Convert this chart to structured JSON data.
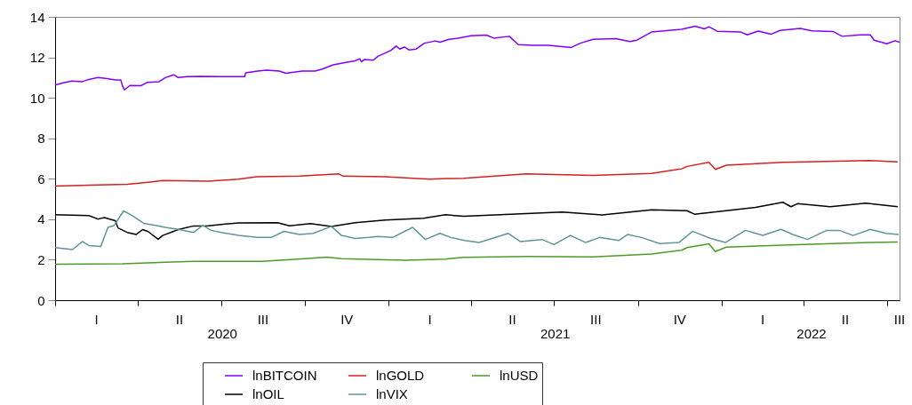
{
  "chart_data": {
    "type": "line",
    "xlim": [
      "2020-01-01",
      "2022-07-15"
    ],
    "ylim": [
      0,
      14
    ],
    "yticks": [
      0,
      2,
      4,
      6,
      8,
      10,
      12,
      14
    ],
    "xticks": [
      {
        "value": "2020-01-01",
        "label": null
      },
      {
        "value": "2020-04-01",
        "label": null
      },
      {
        "value": "2020-07-01",
        "label": null
      },
      {
        "value": "2020-10-01",
        "label": null
      },
      {
        "value": "2021-01-01",
        "label": null
      },
      {
        "value": "2021-04-01",
        "label": null
      },
      {
        "value": "2021-07-01",
        "label": null
      },
      {
        "value": "2021-10-01",
        "label": null
      },
      {
        "value": "2022-01-01",
        "label": null
      },
      {
        "value": "2022-04-01",
        "label": null
      },
      {
        "value": "2022-07-01",
        "label": null
      },
      {
        "value": "2020-07-02",
        "label": "2020"
      },
      {
        "value": "2021-07-02",
        "label": "2021"
      },
      {
        "value": "2022-04-09",
        "label": "2022"
      }
    ],
    "annotations": [
      "I",
      "II",
      "III",
      "IV",
      "I",
      "II",
      "III",
      "IV",
      "I",
      "II",
      "III"
    ],
    "legend": "bottom",
    "grid": false,
    "series": [
      {
        "name": "lnBITCOIN",
        "color": "#8000ff",
        "x": [
          "2020-01-01",
          "2020-01-09",
          "2020-01-19",
          "2020-01-31",
          "2020-02-07",
          "2020-02-17",
          "2020-02-27",
          "2020-03-07",
          "2020-03-13",
          "2020-03-15",
          "2020-03-17",
          "2020-03-23",
          "2020-04-04",
          "2020-04-11",
          "2020-04-24",
          "2020-05-01",
          "2020-05-10",
          "2020-05-15",
          "2020-05-25",
          "2020-06-08",
          "2020-07-02",
          "2020-07-27",
          "2020-07-28",
          "2020-08-10",
          "2020-08-20",
          "2020-09-03",
          "2020-09-10",
          "2020-09-28",
          "2020-10-12",
          "2020-10-20",
          "2020-11-01",
          "2020-11-15",
          "2020-11-25",
          "2020-11-30",
          "2020-12-02",
          "2020-12-05",
          "2020-12-15",
          "2020-12-20",
          "2021-01-03",
          "2021-01-09",
          "2021-01-13",
          "2021-01-18",
          "2021-01-23",
          "2021-01-31",
          "2021-02-09",
          "2021-02-21",
          "2021-02-26",
          "2021-03-08",
          "2021-03-18",
          "2021-04-01",
          "2021-04-18",
          "2021-04-26",
          "2021-05-13",
          "2021-05-23",
          "2021-06-08",
          "2021-06-25",
          "2021-07-20",
          "2021-07-30",
          "2021-08-13",
          "2021-09-07",
          "2021-09-22",
          "2021-09-30",
          "2021-10-16",
          "2021-11-04",
          "2021-11-18",
          "2021-12-03",
          "2021-12-13",
          "2021-12-18",
          "2021-12-27",
          "2022-01-22",
          "2022-01-29",
          "2022-02-10",
          "2022-02-24",
          "2022-03-06",
          "2022-03-28",
          "2022-04-10",
          "2022-05-03",
          "2022-05-13",
          "2022-06-02",
          "2022-06-13",
          "2022-06-17",
          "2022-07-01",
          "2022-07-10",
          "2022-07-15"
        ],
        "values": [
          10.63,
          10.73,
          10.83,
          10.8,
          10.91,
          11.0,
          10.95,
          10.88,
          10.88,
          10.58,
          10.39,
          10.61,
          10.6,
          10.76,
          10.8,
          11.0,
          11.14,
          11.0,
          11.05,
          11.06,
          11.05,
          11.05,
          11.24,
          11.32,
          11.37,
          11.32,
          11.21,
          11.32,
          11.32,
          11.42,
          11.63,
          11.75,
          11.83,
          11.93,
          11.78,
          11.89,
          11.86,
          12.05,
          12.34,
          12.56,
          12.41,
          12.51,
          12.37,
          12.41,
          12.7,
          12.81,
          12.75,
          12.89,
          12.95,
          13.07,
          13.1,
          12.95,
          13.04,
          12.63,
          12.6,
          12.6,
          12.49,
          12.7,
          12.89,
          12.92,
          12.78,
          12.85,
          13.25,
          13.33,
          13.39,
          13.54,
          13.41,
          13.51,
          13.29,
          13.25,
          13.11,
          13.3,
          13.14,
          13.33,
          13.43,
          13.31,
          13.28,
          13.04,
          13.11,
          13.11,
          12.85,
          12.67,
          12.82,
          12.75
        ]
      },
      {
        "name": "lnGOLD",
        "color": "#d42020",
        "x": [
          "2020-01-01",
          "2020-02-17",
          "2020-03-20",
          "2020-04-12",
          "2020-04-28",
          "2020-06-17",
          "2020-07-20",
          "2020-08-09",
          "2020-09-25",
          "2020-11-07",
          "2020-11-12",
          "2020-12-28",
          "2021-02-15",
          "2021-03-04",
          "2021-03-24",
          "2021-06-01",
          "2021-08-13",
          "2021-10-16",
          "2021-11-18",
          "2021-11-24",
          "2021-12-18",
          "2021-12-25",
          "2022-01-06",
          "2022-03-09",
          "2022-06-12",
          "2022-07-13"
        ],
        "values": [
          5.64,
          5.69,
          5.73,
          5.83,
          5.91,
          5.88,
          5.98,
          6.1,
          6.13,
          6.24,
          6.13,
          6.1,
          5.98,
          6.01,
          6.02,
          6.24,
          6.17,
          6.27,
          6.49,
          6.61,
          6.81,
          6.46,
          6.67,
          6.81,
          6.9,
          6.84
        ]
      },
      {
        "name": "lnUSD",
        "color": "#4c9a2a",
        "x": [
          "2020-01-01",
          "2020-03-15",
          "2020-05-01",
          "2020-06-01",
          "2020-08-15",
          "2020-10-01",
          "2020-10-25",
          "2020-11-10",
          "2020-12-28",
          "2021-01-20",
          "2021-03-04",
          "2021-03-24",
          "2021-06-01",
          "2021-08-13",
          "2021-10-16",
          "2021-11-18",
          "2021-11-24",
          "2021-12-18",
          "2021-12-25",
          "2022-01-06",
          "2022-03-09",
          "2022-06-12",
          "2022-07-13"
        ],
        "values": [
          1.78,
          1.8,
          1.88,
          1.92,
          1.92,
          2.05,
          2.13,
          2.05,
          2.0,
          1.98,
          2.03,
          2.12,
          2.16,
          2.14,
          2.28,
          2.47,
          2.6,
          2.79,
          2.4,
          2.62,
          2.72,
          2.85,
          2.88
        ]
      },
      {
        "name": "lnOIL",
        "color": "#000000",
        "x": [
          "2020-01-01",
          "2020-02-07",
          "2020-02-17",
          "2020-02-24",
          "2020-03-07",
          "2020-03-10",
          "2020-03-20",
          "2020-03-30",
          "2020-04-06",
          "2020-04-12",
          "2020-04-23",
          "2020-04-28",
          "2020-05-15",
          "2020-06-01",
          "2020-06-17",
          "2020-07-20",
          "2020-09-01",
          "2020-09-14",
          "2020-10-07",
          "2020-10-30",
          "2020-11-25",
          "2020-12-28",
          "2021-02-08",
          "2021-03-04",
          "2021-03-24",
          "2021-07-10",
          "2021-08-23",
          "2021-10-16",
          "2021-11-24",
          "2021-12-02",
          "2022-02-07",
          "2022-03-09",
          "2022-03-18",
          "2022-03-25",
          "2022-04-30",
          "2022-06-08",
          "2022-07-13"
        ],
        "values": [
          4.22,
          4.18,
          4.01,
          4.08,
          3.93,
          3.57,
          3.35,
          3.25,
          3.49,
          3.39,
          3.01,
          3.2,
          3.49,
          3.67,
          3.68,
          3.82,
          3.83,
          3.68,
          3.79,
          3.64,
          3.83,
          3.96,
          4.05,
          4.22,
          4.15,
          4.36,
          4.21,
          4.47,
          4.42,
          4.25,
          4.59,
          4.84,
          4.62,
          4.77,
          4.62,
          4.79,
          4.62
        ]
      },
      {
        "name": "lnVIX",
        "color": "#5f9595",
        "x": [
          "2020-01-01",
          "2020-01-20",
          "2020-01-31",
          "2020-02-07",
          "2020-02-20",
          "2020-02-28",
          "2020-03-06",
          "2020-03-16",
          "2020-03-25",
          "2020-04-07",
          "2020-04-20",
          "2020-05-01",
          "2020-05-15",
          "2020-06-01",
          "2020-06-11",
          "2020-06-20",
          "2020-07-01",
          "2020-07-20",
          "2020-08-10",
          "2020-08-25",
          "2020-09-08",
          "2020-09-25",
          "2020-10-10",
          "2020-10-30",
          "2020-11-10",
          "2020-11-25",
          "2020-12-10",
          "2020-12-20",
          "2021-01-05",
          "2021-01-27",
          "2021-02-10",
          "2021-02-26",
          "2021-03-10",
          "2021-03-25",
          "2021-04-10",
          "2021-05-12",
          "2021-05-25",
          "2021-06-18",
          "2021-07-01",
          "2021-07-19",
          "2021-08-05",
          "2021-08-20",
          "2021-09-10",
          "2021-09-20",
          "2021-10-05",
          "2021-10-25",
          "2021-11-15",
          "2021-11-30",
          "2021-12-03",
          "2021-12-20",
          "2022-01-05",
          "2022-01-27",
          "2022-02-15",
          "2022-03-07",
          "2022-03-20",
          "2022-04-05",
          "2022-04-26",
          "2022-05-10",
          "2022-05-25",
          "2022-06-13",
          "2022-06-30",
          "2022-07-14"
        ],
        "values": [
          2.6,
          2.5,
          2.9,
          2.7,
          2.65,
          3.6,
          3.7,
          4.41,
          4.2,
          3.8,
          3.7,
          3.6,
          3.5,
          3.35,
          3.7,
          3.45,
          3.35,
          3.2,
          3.1,
          3.1,
          3.4,
          3.25,
          3.3,
          3.65,
          3.2,
          3.05,
          3.1,
          3.15,
          3.1,
          3.6,
          3.0,
          3.3,
          3.1,
          2.95,
          2.85,
          3.3,
          2.9,
          3.0,
          2.75,
          3.2,
          2.85,
          3.1,
          2.95,
          3.25,
          3.1,
          2.8,
          2.85,
          3.4,
          3.35,
          3.05,
          2.85,
          3.45,
          3.2,
          3.5,
          3.25,
          3.0,
          3.45,
          3.45,
          3.2,
          3.5,
          3.3,
          3.25
        ]
      }
    ]
  }
}
